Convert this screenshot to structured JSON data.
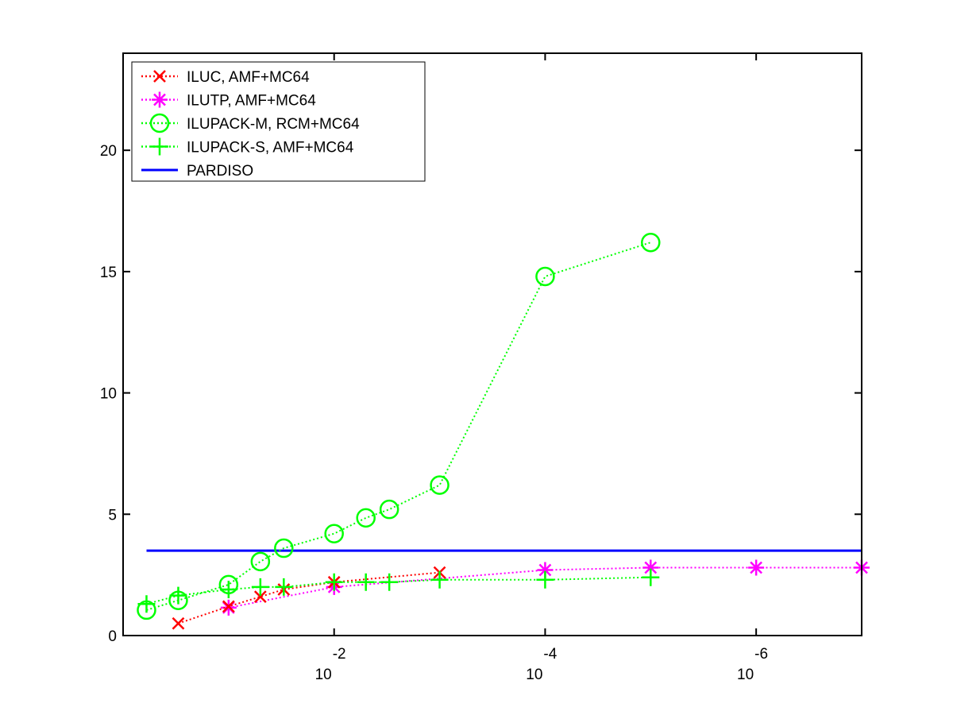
{
  "chart_data": {
    "type": "line",
    "title": "",
    "xlabel": "",
    "ylabel": "",
    "x_scale": "log",
    "x_reversed": true,
    "xlim": [
      1,
      1e-07
    ],
    "ylim": [
      0,
      24
    ],
    "grid": false,
    "legend_position": "top-left",
    "x_ticks": [
      {
        "value": 0.01,
        "base": "10",
        "exponent": "-2"
      },
      {
        "value": 0.0001,
        "base": "10",
        "exponent": "-4"
      },
      {
        "value": 1e-06,
        "base": "10",
        "exponent": "-6"
      }
    ],
    "y_ticks": [
      0,
      5,
      10,
      15,
      20
    ],
    "series": [
      {
        "name": "ILUC, AMF+MC64",
        "color": "#ff0000",
        "marker": "x",
        "line": "dotted",
        "x": [
          0.3,
          0.1,
          0.05,
          0.03,
          0.01,
          0.001
        ],
        "y": [
          0.5,
          1.2,
          1.6,
          1.9,
          2.2,
          2.6
        ]
      },
      {
        "name": "ILUTP, AMF+MC64",
        "color": "#ff00ff",
        "marker": "asterisk",
        "line": "dotted",
        "x": [
          0.1,
          0.01,
          0.0001,
          1e-05,
          1e-06,
          1e-07
        ],
        "y": [
          1.15,
          2.0,
          2.7,
          2.8,
          2.8,
          2.8
        ]
      },
      {
        "name": "ILUPACK-M, RCM+MC64",
        "color": "#00ff00",
        "marker": "circle",
        "line": "dotted",
        "x": [
          0.6,
          0.3,
          0.1,
          0.05,
          0.03,
          0.01,
          0.005,
          0.003,
          0.001,
          0.0001,
          1e-05
        ],
        "y": [
          1.05,
          1.45,
          2.1,
          3.05,
          3.6,
          4.2,
          4.85,
          5.2,
          6.2,
          14.8,
          16.2
        ]
      },
      {
        "name": "ILUPACK-S, AMF+MC64",
        "color": "#00ff00",
        "marker": "plus",
        "line": "dotted",
        "x": [
          0.6,
          0.3,
          0.1,
          0.05,
          0.03,
          0.01,
          0.005,
          0.003,
          0.001,
          0.0001,
          1e-05
        ],
        "y": [
          1.3,
          1.65,
          1.9,
          2.0,
          2.0,
          2.2,
          2.2,
          2.2,
          2.3,
          2.3,
          2.4
        ]
      },
      {
        "name": "PARDISO",
        "color": "#0000ff",
        "marker": "none",
        "line": "solid",
        "x": [
          0.6,
          1e-07
        ],
        "y": [
          3.5,
          3.5
        ]
      }
    ]
  }
}
